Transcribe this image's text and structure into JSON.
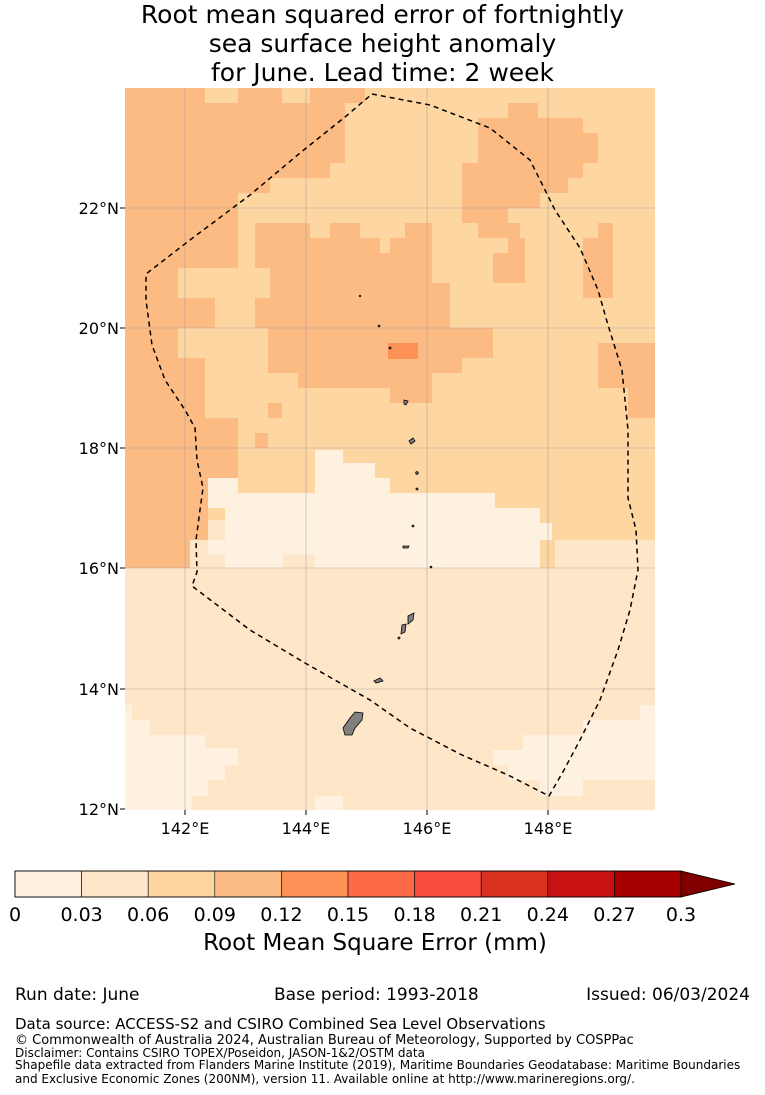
{
  "title": {
    "line1": "Root mean squared error of fortnightly",
    "line2": "sea surface height anomaly",
    "line3": "for June. Lead time: 2 week"
  },
  "map": {
    "lat_labels": [
      "22°N",
      "20°N",
      "18°N",
      "16°N",
      "14°N",
      "12°N"
    ],
    "lon_labels": [
      "142°E",
      "144°E",
      "146°E",
      "148°E"
    ],
    "lon_range": [
      141.0,
      149.8
    ],
    "lat_range": [
      12.0,
      24.0
    ],
    "boundary_style": "dashed",
    "land_color": "#808080"
  },
  "colorbar": {
    "ticks": [
      "0",
      "0.03",
      "0.06",
      "0.09",
      "0.12",
      "0.15",
      "0.18",
      "0.21",
      "0.24",
      "0.27",
      "0.3"
    ],
    "colors": [
      "#fff1e0",
      "#fee6c8",
      "#fdd6a2",
      "#fdbb84",
      "#fc9256",
      "#fc6a48",
      "#fa4c3c",
      "#d9321f",
      "#c81212",
      "#a80000"
    ],
    "extend_color": "#800000",
    "label": "Root Mean Square Error (mm)"
  },
  "footer": {
    "run_date": "Run date: June",
    "base_period": "Base period: 1993-2018",
    "issued": "Issued: 06/03/2024",
    "data_source": "Data source: ACCESS-S2 and CSIRO Combined Sea Level Observations",
    "copyright": "© Commonwealth of Australia 2024, Australian Bureau of Meteorology, Supported by COSPPac",
    "disclaimer": "Disclaimer: Contains CSIRO TOPEX/Poseidon, JASON-1&2/OSTM data",
    "shapefile1": "Shapefile data extracted from Flanders Marine Institute (2019), Maritime Boundaries Geodatabase: Maritime Boundaries",
    "shapefile2": "and Exclusive Economic Zones (200NM), version 11. Available online at http://www.marineregions.org/."
  }
}
